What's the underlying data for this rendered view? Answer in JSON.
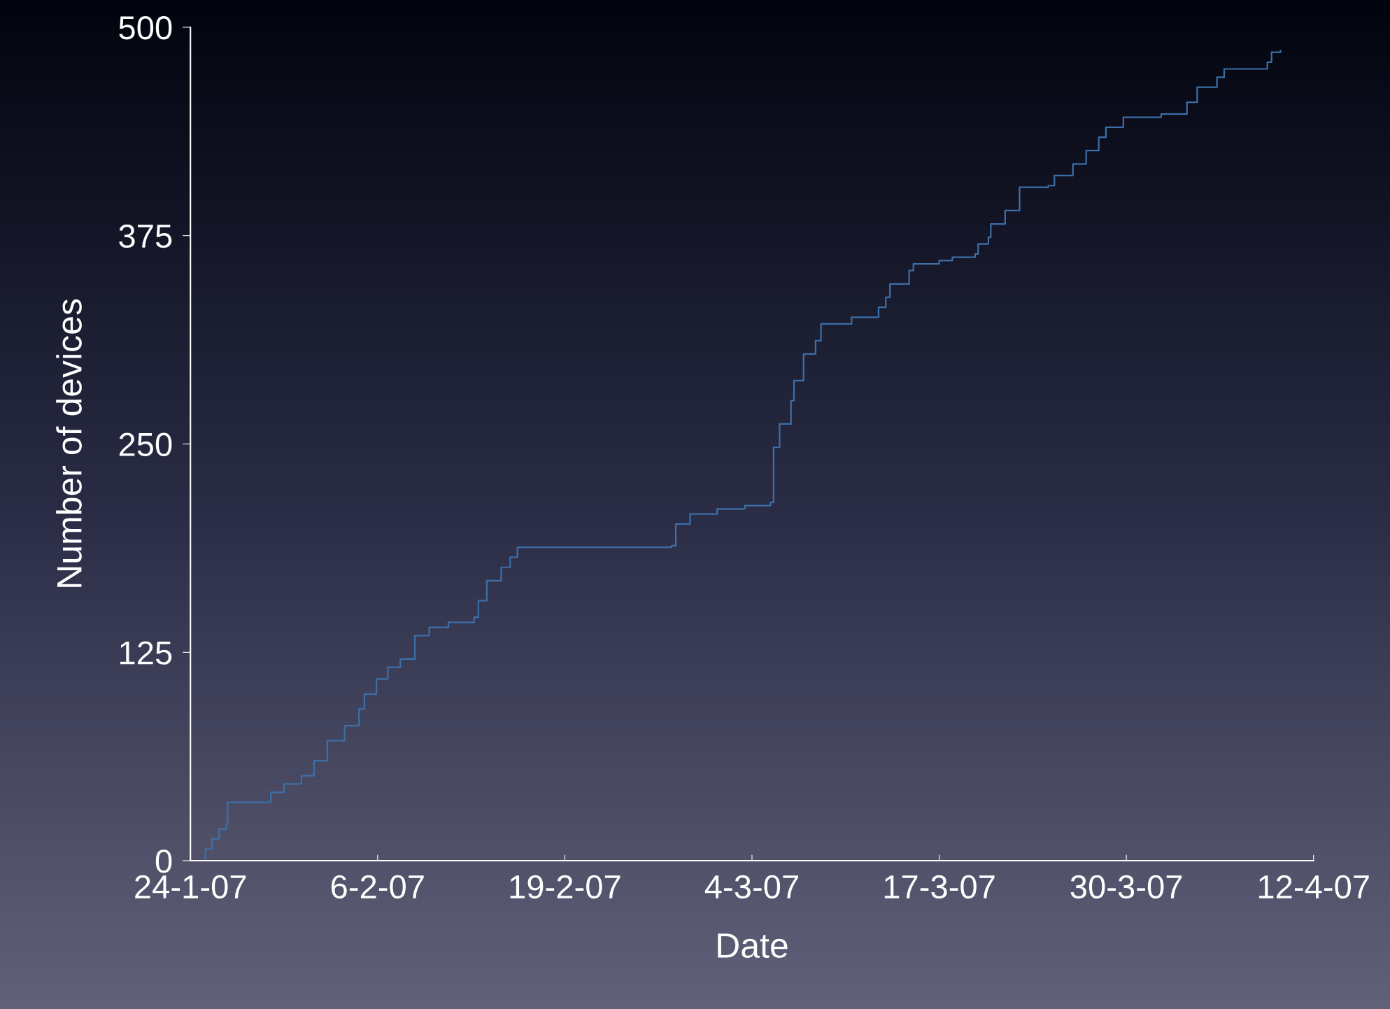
{
  "chart_data": {
    "type": "step",
    "xlabel": "Date",
    "ylabel": "Number of devices",
    "x": [
      "2007-01-24T19:00",
      "2007-01-25T01:00",
      "2007-01-25T12:00",
      "2007-01-26T00:00",
      "2007-01-26T12:00",
      "2007-01-26T14:00",
      "2007-01-29T10:00",
      "2007-01-29T14:00",
      "2007-01-30T12:00",
      "2007-01-31T17:00",
      "2007-02-01T14:00",
      "2007-02-02T12:00",
      "2007-02-03T17:00",
      "2007-02-04T17:00",
      "2007-02-05T02:00",
      "2007-02-05T22:00",
      "2007-02-06T17:00",
      "2007-02-07T14:00",
      "2007-02-08T14:00",
      "2007-02-09T14:00",
      "2007-02-10T22:00",
      "2007-02-12T17:00",
      "2007-02-13T00:00",
      "2007-02-13T14:00",
      "2007-02-14T14:00",
      "2007-02-15T05:00",
      "2007-02-15T17:00",
      "2007-02-26T10:00",
      "2007-02-26T17:00",
      "2007-02-27T17:00",
      "2007-03-01T14:00",
      "2007-03-03T12:00",
      "2007-03-05T07:00",
      "2007-03-05T12:00",
      "2007-03-05T22:00",
      "2007-03-06T17:00",
      "2007-03-06T22:00",
      "2007-03-07T14:00",
      "2007-03-08T10:00",
      "2007-03-08T19:00",
      "2007-03-10T22:00",
      "2007-03-12T19:00",
      "2007-03-13T07:00",
      "2007-03-13T14:00",
      "2007-03-14T22:00",
      "2007-03-15T05:00",
      "2007-03-17T00:00",
      "2007-03-17T22:00",
      "2007-03-19T12:00",
      "2007-03-19T17:00",
      "2007-03-20T10:00",
      "2007-03-20T14:00",
      "2007-03-21T14:00",
      "2007-03-22T14:00",
      "2007-03-24T14:00",
      "2007-03-25T00:00",
      "2007-03-26T07:00",
      "2007-03-27T05:00",
      "2007-03-28T02:00",
      "2007-03-28T14:00",
      "2007-03-29T19:00",
      "2007-04-01T10:00",
      "2007-04-03T05:00",
      "2007-04-03T22:00",
      "2007-04-05T07:00",
      "2007-04-05T19:00",
      "2007-04-08T19:00",
      "2007-04-09T02:00",
      "2007-04-09T17:00"
    ],
    "series": [
      {
        "color": "#3c6fa8",
        "values": [
          0,
          7,
          13,
          19,
          22,
          35,
          35,
          41,
          46,
          51,
          60,
          72,
          81,
          91,
          100,
          109,
          116,
          121,
          135,
          140,
          143,
          146,
          156,
          168,
          176,
          182,
          188,
          189,
          202,
          208,
          211,
          213,
          215,
          248,
          262,
          276,
          288,
          304,
          312,
          322,
          326,
          332,
          338,
          346,
          354,
          358,
          360,
          362,
          364,
          370,
          374,
          382,
          390,
          404,
          405,
          411,
          418,
          426,
          434,
          440,
          446,
          448,
          455,
          464,
          470,
          475,
          479,
          485,
          486
        ]
      }
    ],
    "xlim": [
      "2007-01-24",
      "2007-04-12"
    ],
    "xticks": [
      {
        "value": "2007-01-24",
        "label": "24-1-07"
      },
      {
        "value": "2007-02-06",
        "label": "6-2-07"
      },
      {
        "value": "2007-02-19",
        "label": "19-2-07"
      },
      {
        "value": "2007-03-04",
        "label": "4-3-07"
      },
      {
        "value": "2007-03-17",
        "label": "17-3-07"
      },
      {
        "value": "2007-03-30",
        "label": "30-3-07"
      },
      {
        "value": "2007-04-12",
        "label": "12-4-07"
      }
    ],
    "ylim": [
      0,
      500
    ],
    "yticks": [
      0,
      125,
      250,
      375,
      500
    ],
    "grid": false,
    "legend": false
  }
}
